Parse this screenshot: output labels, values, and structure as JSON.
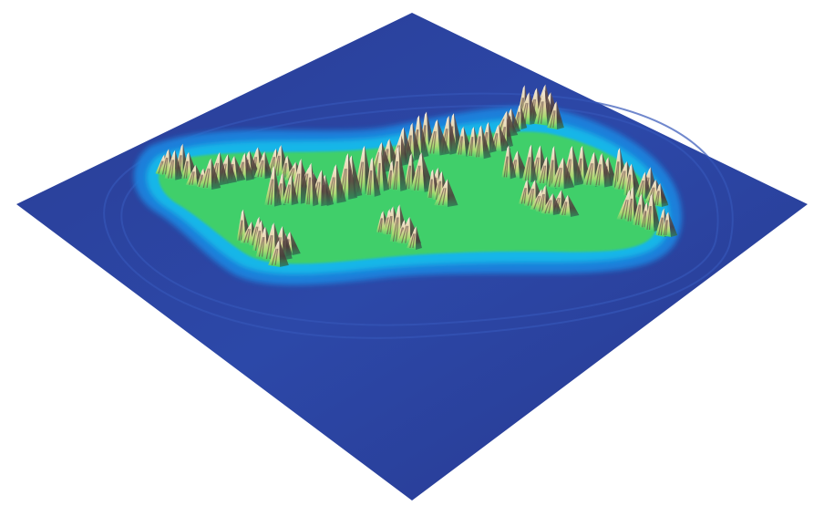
{
  "scene": {
    "kind": "3d-terrain-heightmap",
    "view": "isometric",
    "background": "#ffffff"
  },
  "colors": {
    "deep_water": "#27398f",
    "water": "#2b4fb0",
    "shallow_water": "#1f77d6",
    "shore": "#17b6e8",
    "lowland": "#2ec98a",
    "grass": "#46d35a",
    "hills": "#c9e07a",
    "highland": "#e8d7a0",
    "rock": "#8a6a63",
    "ridge_shadow": "#4a3b3a",
    "peak": "#f4ece0"
  }
}
